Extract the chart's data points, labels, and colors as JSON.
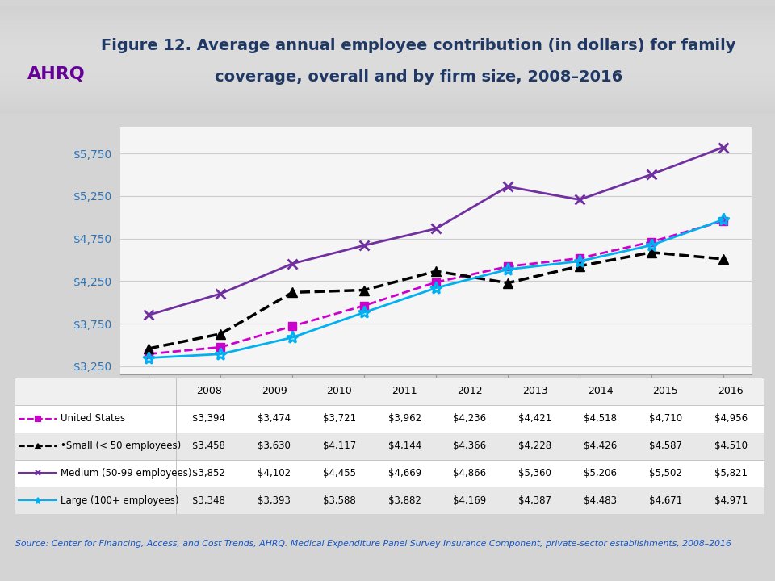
{
  "title_line1": "Figure 12. Average annual employee contribution (in dollars) for family",
  "title_line2": "coverage, overall and by firm size, 2008–2016",
  "years": [
    2008,
    2009,
    2010,
    2011,
    2012,
    2013,
    2014,
    2015,
    2016
  ],
  "series_order": [
    "United States",
    "Small",
    "Medium",
    "Large"
  ],
  "series": {
    "United States": {
      "values": [
        3394,
        3474,
        3721,
        3962,
        4236,
        4421,
        4518,
        4710,
        4956
      ],
      "color": "#cc00cc",
      "linestyle": "--",
      "marker": "s",
      "markersize": 7,
      "linewidth": 2.0,
      "label": "United States"
    },
    "Small": {
      "values": [
        3458,
        3630,
        4117,
        4144,
        4366,
        4228,
        4426,
        4587,
        4510
      ],
      "color": "#000000",
      "linestyle": "--",
      "marker": "^",
      "markersize": 9,
      "linewidth": 2.5,
      "label": "•Small (< 50 employees)"
    },
    "Medium": {
      "values": [
        3852,
        4102,
        4455,
        4669,
        4866,
        5360,
        5206,
        5502,
        5821
      ],
      "color": "#7030a0",
      "linestyle": "-",
      "marker": "x",
      "markersize": 9,
      "linewidth": 2.0,
      "label": "Medium (50-99 employees)"
    },
    "Large": {
      "values": [
        3348,
        3393,
        3588,
        3882,
        4169,
        4387,
        4483,
        4671,
        4971
      ],
      "color": "#00b0f0",
      "linestyle": "-",
      "marker": "*",
      "markersize": 11,
      "linewidth": 2.0,
      "label": "Large (100+ employees)"
    }
  },
  "ylim": [
    3150,
    6050
  ],
  "yticks": [
    3250,
    3750,
    4250,
    4750,
    5250,
    5750
  ],
  "ytick_labels": [
    "$3,250",
    "$3,750",
    "$4,250",
    "$4,750",
    "$5,250",
    "$5,750"
  ],
  "title_color": "#1f3864",
  "source_text": "Source: Center for Financing, Access, and Cost Trends, AHRQ. Medical Expenditure Panel Survey Insurance Component, private-sector establishments, 2008–2016",
  "table_headers": [
    "",
    "2008",
    "2009",
    "2010",
    "2011",
    "2012",
    "2013",
    "2014",
    "2015",
    "2016"
  ],
  "table_rows": [
    [
      "United States",
      "$3,394",
      "$3,474",
      "$3,721",
      "$3,962",
      "$4,236",
      "$4,421",
      "$4,518",
      "$4,710",
      "$4,956"
    ],
    [
      "•Small (< 50 employees)",
      "$3,458",
      "$3,630",
      "$4,117",
      "$4,144",
      "$4,366",
      "$4,228",
      "$4,426",
      "$4,587",
      "$4,510"
    ],
    [
      "Medium (50-99 employees)",
      "$3,852",
      "$4,102",
      "$4,455",
      "$4,669",
      "$4,866",
      "$5,360",
      "$5,206",
      "$5,502",
      "$5,821"
    ],
    [
      "Large (100+ employees)",
      "$3,348",
      "$3,393",
      "$3,588",
      "$3,882",
      "$4,169",
      "$4,387",
      "$4,483",
      "$4,671",
      "$4,971"
    ]
  ],
  "legend_line_colors": [
    "#cc00cc",
    "#000000",
    "#7030a0",
    "#00b0f0"
  ],
  "legend_linestyles": [
    "--",
    "--",
    "-",
    "-"
  ],
  "legend_markers": [
    "s",
    "^",
    "x",
    "*"
  ],
  "row_bg_colors": [
    "#ffffff",
    "#e8e8e8",
    "#ffffff",
    "#e8e8e8"
  ]
}
